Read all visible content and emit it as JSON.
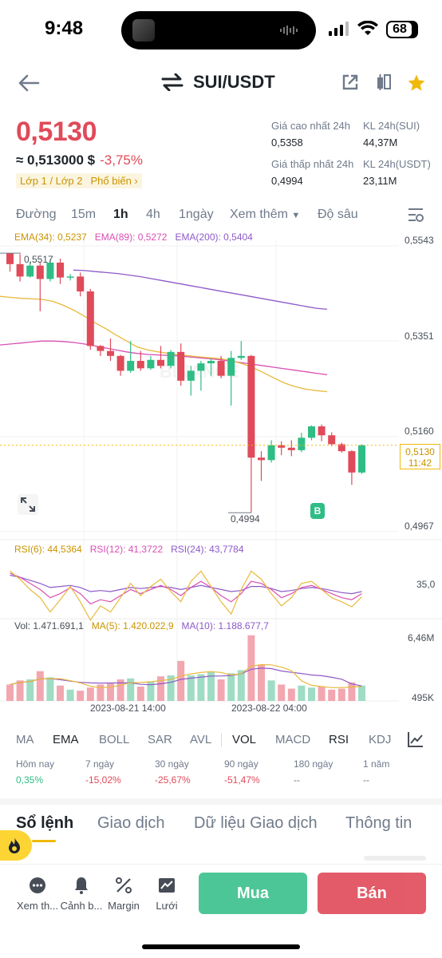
{
  "status": {
    "time": "9:48",
    "battery": "68"
  },
  "header": {
    "pair": "SUI/USDT"
  },
  "price": {
    "last": "0,5130",
    "approx": "≈ 0,513000 $",
    "change": "-3,75%",
    "tag1": "Lớp 1 / Lớp 2",
    "tag2": "Phổ biến ›"
  },
  "stats": {
    "high_label": "Giá cao nhất 24h",
    "high": "0,5358",
    "low_label": "Giá thấp nhất 24h",
    "low": "0,4994",
    "vol_sui_label": "KL 24h(SUI)",
    "vol_sui": "44,37M",
    "vol_usdt_label": "KL 24h(USDT)",
    "vol_usdt": "23,11M"
  },
  "timeframes": {
    "line": "Đường",
    "m15": "15m",
    "h1": "1h",
    "h4": "4h",
    "d1": "1ngày",
    "more": "Xem thêm",
    "depth": "Độ sâu"
  },
  "ema_legend": {
    "e34": "EMA(34): 0,5237",
    "e89": "EMA(89): 0,5272",
    "e200": "EMA(200): 0,5404"
  },
  "rsi_legend": {
    "r6": "RSI(6): 44,5364",
    "r12": "RSI(12): 41,3722",
    "r24": "RSI(24): 43,7784"
  },
  "vol_legend": {
    "vol": "Vol: 1.471.691,1",
    "ma5": "MA(5): 1.420.022,9",
    "ma10": "MA(10): 1.188.677,7"
  },
  "chart_labels": {
    "y_top": "0,5543",
    "y_2": "0,5351",
    "y_3": "0,5160",
    "y_bottom": "0,4967",
    "current_price": "0,5130",
    "countdown": "11:42",
    "high_mark": "0,5517",
    "low_mark": "0,4994",
    "buy_marker": "B",
    "rsi_level": "35,0",
    "vol_top": "6,46M",
    "vol_bottom": "495K",
    "date1": "2023-08-21 14:00",
    "date2": "2023-08-22 04:00"
  },
  "indicators": {
    "ma": "MA",
    "ema": "EMA",
    "boll": "BOLL",
    "sar": "SAR",
    "avl": "AVL",
    "vol": "VOL",
    "macd": "MACD",
    "rsi": "RSI",
    "kdj": "KDJ"
  },
  "performance": [
    {
      "label": "Hôm nay",
      "value": "0,35%"
    },
    {
      "label": "7 ngày",
      "value": "-15,02%"
    },
    {
      "label": "30 ngày",
      "value": "-25,67%"
    },
    {
      "label": "90 ngày",
      "value": "-51,47%"
    },
    {
      "label": "180 ngày",
      "value": "--"
    },
    {
      "label": "1 năm",
      "value": "--"
    }
  ],
  "tabs": {
    "orderbook": "Sổ lệnh",
    "trades": "Giao dịch",
    "data": "Dữ liệu Giao dịch",
    "info": "Thông tin"
  },
  "bottom": {
    "more": "Xem th...",
    "alert": "Cảnh b...",
    "margin": "Margin",
    "grid": "Lưới",
    "buy": "Mua",
    "sell": "Bán"
  },
  "colors": {
    "up": "#2ebd85",
    "down": "#e04a59",
    "accent": "#f0b90b",
    "ema34": "#e8b93c",
    "ema89": "#d84fb3",
    "ema200": "#8e5ac8"
  },
  "candles": [
    {
      "o": 0.5517,
      "h": 0.5517,
      "l": 0.548,
      "c": 0.5495
    },
    {
      "o": 0.5495,
      "h": 0.5515,
      "l": 0.546,
      "c": 0.547
    },
    {
      "o": 0.547,
      "h": 0.55,
      "l": 0.5468,
      "c": 0.5492
    },
    {
      "o": 0.5492,
      "h": 0.5498,
      "l": 0.54,
      "c": 0.5465
    },
    {
      "o": 0.5465,
      "h": 0.5505,
      "l": 0.546,
      "c": 0.5498
    },
    {
      "o": 0.5498,
      "h": 0.5506,
      "l": 0.5455,
      "c": 0.5468
    },
    {
      "o": 0.5468,
      "h": 0.5475,
      "l": 0.5462,
      "c": 0.547
    },
    {
      "o": 0.547,
      "h": 0.5478,
      "l": 0.543,
      "c": 0.544
    },
    {
      "o": 0.544,
      "h": 0.5445,
      "l": 0.5322,
      "c": 0.533
    },
    {
      "o": 0.533,
      "h": 0.5332,
      "l": 0.531,
      "c": 0.532
    },
    {
      "o": 0.532,
      "h": 0.5345,
      "l": 0.53,
      "c": 0.531
    },
    {
      "o": 0.531,
      "h": 0.5312,
      "l": 0.527,
      "c": 0.528
    },
    {
      "o": 0.528,
      "h": 0.534,
      "l": 0.5276,
      "c": 0.53
    },
    {
      "o": 0.53,
      "h": 0.532,
      "l": 0.528,
      "c": 0.5285
    },
    {
      "o": 0.5285,
      "h": 0.531,
      "l": 0.5282,
      "c": 0.5302
    },
    {
      "o": 0.5302,
      "h": 0.533,
      "l": 0.5285,
      "c": 0.529
    },
    {
      "o": 0.529,
      "h": 0.5322,
      "l": 0.5285,
      "c": 0.5318
    },
    {
      "o": 0.5318,
      "h": 0.5335,
      "l": 0.525,
      "c": 0.526
    },
    {
      "o": 0.526,
      "h": 0.529,
      "l": 0.523,
      "c": 0.528
    },
    {
      "o": 0.528,
      "h": 0.53,
      "l": 0.524,
      "c": 0.5295
    },
    {
      "o": 0.5295,
      "h": 0.5305,
      "l": 0.527,
      "c": 0.53
    },
    {
      "o": 0.53,
      "h": 0.531,
      "l": 0.5265,
      "c": 0.527
    },
    {
      "o": 0.527,
      "h": 0.532,
      "l": 0.521,
      "c": 0.5306
    },
    {
      "o": 0.5306,
      "h": 0.534,
      "l": 0.5302,
      "c": 0.531
    },
    {
      "o": 0.531,
      "h": 0.5312,
      "l": 0.4994,
      "c": 0.5105
    },
    {
      "o": 0.5105,
      "h": 0.5118,
      "l": 0.5058,
      "c": 0.51
    },
    {
      "o": 0.51,
      "h": 0.514,
      "l": 0.5095,
      "c": 0.513
    },
    {
      "o": 0.513,
      "h": 0.5138,
      "l": 0.511,
      "c": 0.5125
    },
    {
      "o": 0.5125,
      "h": 0.514,
      "l": 0.5108,
      "c": 0.512
    },
    {
      "o": 0.512,
      "h": 0.5155,
      "l": 0.5116,
      "c": 0.5145
    },
    {
      "o": 0.5145,
      "h": 0.517,
      "l": 0.514,
      "c": 0.5168
    },
    {
      "o": 0.5168,
      "h": 0.5172,
      "l": 0.5138,
      "c": 0.515
    },
    {
      "o": 0.515,
      "h": 0.5156,
      "l": 0.5128,
      "c": 0.5132
    },
    {
      "o": 0.5132,
      "h": 0.5135,
      "l": 0.5115,
      "c": 0.5118
    },
    {
      "o": 0.5118,
      "h": 0.512,
      "l": 0.505,
      "c": 0.5075
    },
    {
      "o": 0.5075,
      "h": 0.5132,
      "l": 0.5072,
      "c": 0.513
    }
  ],
  "volumes": [
    1.6,
    2.0,
    2.1,
    2.9,
    2.3,
    1.5,
    1.1,
    1.0,
    1.3,
    1.6,
    1.7,
    2.1,
    2.2,
    1.4,
    1.9,
    2.4,
    2.5,
    3.9,
    2.5,
    2.6,
    2.8,
    2.1,
    2.7,
    3.0,
    6.4,
    3.5,
    2.0,
    1.6,
    1.2,
    1.5,
    1.3,
    1.4,
    1.1,
    1.2,
    1.8,
    1.5
  ],
  "ema34": [
    0.543,
    0.5428,
    0.5426,
    0.5425,
    0.5424,
    0.542,
    0.5412,
    0.5402,
    0.539,
    0.5377,
    0.5365,
    0.5352,
    0.534,
    0.5328,
    0.5322,
    0.5318,
    0.5315,
    0.5312,
    0.531,
    0.5308,
    0.5306,
    0.5304,
    0.53,
    0.5294,
    0.5286,
    0.5276,
    0.5265,
    0.5255,
    0.5248,
    0.5243,
    0.524,
    0.5238
  ],
  "ema89": [
    0.5332,
    0.5334,
    0.5336,
    0.5338,
    0.534,
    0.534,
    0.5339,
    0.5337,
    0.5334,
    0.533,
    0.5326,
    0.5322,
    0.5318,
    0.5315,
    0.5313,
    0.5312,
    0.5311,
    0.531,
    0.5308,
    0.5306,
    0.5304,
    0.5302,
    0.5299,
    0.5296,
    0.5293,
    0.529,
    0.5287,
    0.5284,
    0.5281,
    0.5278,
    0.5275,
    0.5272
  ],
  "ema200": [
    0.5483,
    0.5482,
    0.548,
    0.5478,
    0.5476,
    0.5473,
    0.547,
    0.5466,
    0.5462,
    0.5458,
    0.5454,
    0.545,
    0.5446,
    0.5442,
    0.5438,
    0.5434,
    0.543,
    0.5426,
    0.5422,
    0.5418,
    0.5414,
    0.541,
    0.5406,
    0.5404
  ]
}
